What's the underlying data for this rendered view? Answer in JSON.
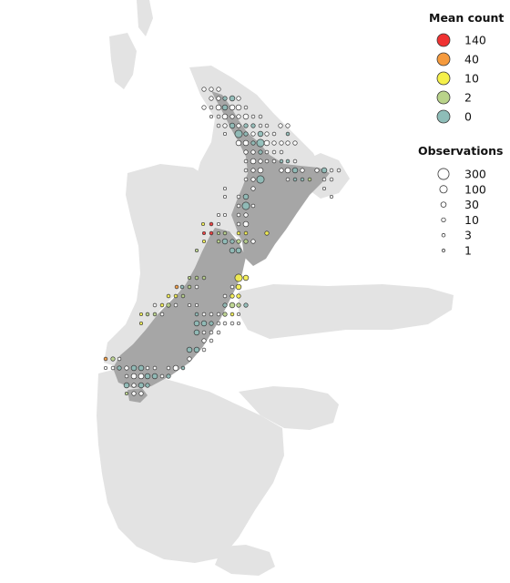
{
  "legend_mean_count": {
    "title": "Mean count",
    "items": [
      {
        "label": "140",
        "color": "#f03232"
      },
      {
        "label": "40",
        "color": "#f59a3d"
      },
      {
        "label": "10",
        "color": "#f5f04a"
      },
      {
        "label": "2",
        "color": "#b9d38a"
      },
      {
        "label": "0",
        "color": "#8ebdb8"
      }
    ]
  },
  "legend_observations": {
    "title": "Observations",
    "items": [
      {
        "label": "300",
        "value": 300
      },
      {
        "label": "100",
        "value": 100
      },
      {
        "label": "30",
        "value": 30
      },
      {
        "label": "10",
        "value": 10
      },
      {
        "label": "3",
        "value": 3
      },
      {
        "label": "1",
        "value": 1
      }
    ]
  },
  "colors": {
    "shelf": "#e3e3e3",
    "land": "#a6a6a6",
    "empty_circle": "#ffffff",
    "outline": "#3a3a3a"
  }
}
